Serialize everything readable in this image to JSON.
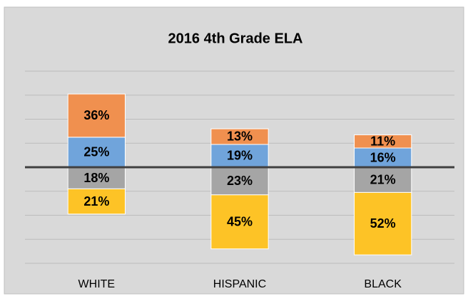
{
  "chart_data": {
    "type": "diverging_stacked_bar",
    "title": "2016 4th Grade ELA",
    "categories": [
      "WHITE",
      "HISPANIC",
      "BLACK"
    ],
    "series": [
      {
        "color": "#70a4db",
        "values": [
          25,
          19,
          16
        ],
        "value_labels": [
          "25%",
          "19%",
          "16%"
        ]
      },
      {
        "color": "#f0904f",
        "values": [
          36,
          13,
          11
        ],
        "value_labels": [
          "36%",
          "13%",
          "11%"
        ]
      },
      {
        "color": "#a5a5a5",
        "values": [
          -18,
          -23,
          -21
        ],
        "value_labels": [
          "18%",
          "23%",
          "21%"
        ]
      },
      {
        "color": "#fdc326",
        "values": [
          -21,
          -45,
          -52
        ],
        "value_labels": [
          "21%",
          "45%",
          "52%"
        ]
      }
    ],
    "ylim": [
      -80,
      80
    ],
    "yticks": [
      -80,
      -60,
      -40,
      -20,
      0,
      20,
      40,
      60,
      80
    ],
    "grid": true
  }
}
